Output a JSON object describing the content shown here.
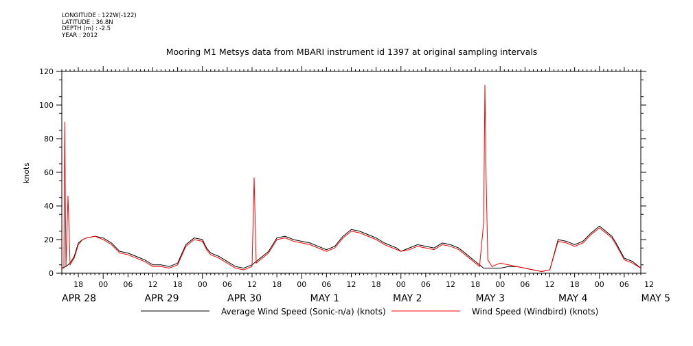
{
  "meta": {
    "longitude": "LONGITUDE : 122W(-122)",
    "latitude": "LATITUDE : 36.8N",
    "depth": "DEPTH (m) : -2.5",
    "year": "YEAR : 2012"
  },
  "chart_data": {
    "type": "line",
    "title": "Mooring M1 Metsys data from MBARI instrument id 1397 at original sampling intervals",
    "ylabel": "knots",
    "xlabel": "",
    "ylim": [
      0,
      120
    ],
    "yticks": [
      0,
      20,
      40,
      60,
      80,
      100,
      120
    ],
    "xlim_hours": [
      -10,
      130
    ],
    "hour_tick_labels": [
      {
        "h": -6,
        "label": "18"
      },
      {
        "h": 0,
        "label": "00"
      },
      {
        "h": 6,
        "label": "06"
      },
      {
        "h": 12,
        "label": "12"
      },
      {
        "h": 18,
        "label": "18"
      },
      {
        "h": 24,
        "label": "00"
      },
      {
        "h": 30,
        "label": "06"
      },
      {
        "h": 36,
        "label": "12"
      },
      {
        "h": 42,
        "label": "18"
      },
      {
        "h": 48,
        "label": "00"
      },
      {
        "h": 54,
        "label": "06"
      },
      {
        "h": 60,
        "label": "12"
      },
      {
        "h": 66,
        "label": "18"
      },
      {
        "h": 72,
        "label": "00"
      },
      {
        "h": 78,
        "label": "06"
      },
      {
        "h": 84,
        "label": "12"
      },
      {
        "h": 90,
        "label": "18"
      },
      {
        "h": 96,
        "label": "00"
      },
      {
        "h": 102,
        "label": "06"
      },
      {
        "h": 108,
        "label": "12"
      },
      {
        "h": 114,
        "label": "18"
      },
      {
        "h": 120,
        "label": "00"
      },
      {
        "h": 126,
        "label": "06"
      },
      {
        "h": 132,
        "label": "12"
      }
    ],
    "date_labels": [
      {
        "h": -12,
        "label": "APR 28"
      },
      {
        "h": 12,
        "label": "APR 29"
      },
      {
        "h": 36,
        "label": "APR 30"
      },
      {
        "h": 60,
        "label": "MAY  1"
      },
      {
        "h": 84,
        "label": "MAY  2"
      },
      {
        "h": 108,
        "label": "MAY  3"
      },
      {
        "h": 132,
        "label": "MAY  4"
      },
      {
        "h": 156,
        "label": "MAY  5"
      }
    ],
    "series": [
      {
        "name": "Average Wind Speed (Sonic-n/a) (knots)",
        "color": "#000000",
        "x": [
          -10,
          -9,
          -8,
          -7,
          -6,
          -5,
          -4,
          -2,
          0,
          2,
          4,
          6,
          8,
          10,
          12,
          14,
          16,
          18,
          20,
          22,
          24,
          25,
          26,
          28,
          30,
          32,
          34,
          36,
          38,
          40,
          42,
          44,
          46,
          48,
          50,
          52,
          54,
          56,
          58,
          60,
          62,
          64,
          66,
          68,
          70,
          71,
          72,
          74,
          76,
          78,
          80,
          82,
          84,
          86,
          88,
          90,
          92,
          94,
          96,
          98,
          100,
          102,
          104,
          106,
          108,
          110,
          112,
          114,
          116,
          118,
          120,
          122,
          123,
          124,
          126,
          128,
          130
        ],
        "y": [
          3,
          4,
          6,
          10,
          18,
          20,
          21,
          22,
          21,
          18,
          13,
          12,
          10,
          8,
          5,
          5,
          4,
          6,
          17,
          21,
          20,
          15,
          12,
          10,
          7,
          4,
          3,
          5,
          9,
          13,
          21,
          22,
          20,
          19,
          18,
          16,
          14,
          16,
          22,
          26,
          25,
          23,
          21,
          18,
          16,
          15,
          13,
          15,
          17,
          16,
          15,
          18,
          17,
          15,
          11,
          7,
          3,
          3,
          3,
          4,
          4,
          3,
          2,
          1,
          2,
          20,
          19,
          17,
          19,
          24,
          28,
          24,
          22,
          18,
          9,
          7,
          3
        ]
      },
      {
        "name": "Wind Speed (Windbird) (knots)",
        "color": "#ff0000",
        "x": [
          -10,
          -9.5,
          -9.3,
          -9,
          -8.5,
          -8,
          -7,
          -6,
          -5,
          -4,
          -2,
          0,
          2,
          4,
          6,
          8,
          10,
          12,
          14,
          16,
          18,
          20,
          22,
          24,
          25,
          26,
          28,
          30,
          32,
          34,
          36,
          36.5,
          37,
          38,
          40,
          42,
          44,
          46,
          48,
          50,
          52,
          54,
          56,
          58,
          60,
          62,
          64,
          66,
          68,
          70,
          72,
          74,
          76,
          78,
          80,
          82,
          84,
          86,
          88,
          90,
          91,
          92,
          92.3,
          92.6,
          93,
          94,
          96,
          98,
          100,
          102,
          104,
          106,
          108,
          110,
          112,
          114,
          116,
          118,
          120,
          122,
          123,
          124,
          126,
          128,
          130
        ],
        "y": [
          3,
          3,
          90,
          4,
          46,
          5,
          9,
          17,
          20,
          21,
          22,
          20,
          17,
          12,
          11,
          9,
          7,
          4,
          4,
          3,
          5,
          16,
          20,
          19,
          14,
          11,
          9,
          6,
          3,
          2,
          4,
          57,
          6,
          8,
          12,
          20,
          21,
          19,
          18,
          17,
          15,
          13,
          15,
          21,
          25,
          24,
          22,
          20,
          17,
          15,
          13,
          14,
          16,
          15,
          14,
          17,
          16,
          14,
          10,
          6,
          4,
          30,
          112,
          57,
          8,
          4,
          6,
          5,
          4,
          3,
          2,
          1,
          2,
          19,
          18,
          16,
          18,
          23,
          27,
          23,
          21,
          17,
          8,
          6,
          3
        ]
      }
    ],
    "legend_position": "bottom"
  }
}
